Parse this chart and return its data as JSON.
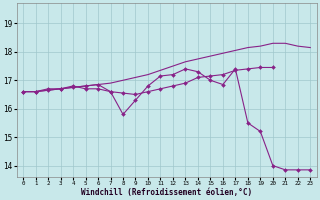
{
  "background_color": "#c8e8ea",
  "grid_color": "#a0c8cc",
  "line_color": "#882288",
  "xlabel": "Windchill (Refroidissement éolien,°C)",
  "x_ticks": [
    0,
    1,
    2,
    3,
    4,
    5,
    6,
    7,
    8,
    9,
    10,
    11,
    12,
    13,
    14,
    15,
    16,
    17,
    18,
    19,
    20,
    21,
    22,
    23
  ],
  "y_ticks": [
    14,
    15,
    16,
    17,
    18,
    19
  ],
  "xlim": [
    -0.5,
    23.5
  ],
  "ylim": [
    13.6,
    19.7
  ],
  "line1_x": [
    0,
    1,
    2,
    3,
    4,
    5,
    6,
    7,
    8,
    9,
    10,
    11,
    12,
    13,
    14,
    15,
    16,
    17,
    18,
    19,
    20
  ],
  "line1_y": [
    16.6,
    16.6,
    16.7,
    16.7,
    16.8,
    16.7,
    16.7,
    16.6,
    16.55,
    16.5,
    16.6,
    16.7,
    16.8,
    16.9,
    17.1,
    17.15,
    17.2,
    17.35,
    17.4,
    17.45,
    17.45
  ],
  "line2_x": [
    0,
    1,
    2,
    3,
    4,
    5,
    6,
    7,
    8,
    9,
    10,
    11,
    12,
    13,
    14,
    15,
    16,
    17,
    18,
    19,
    20,
    21,
    22,
    23
  ],
  "line2_y": [
    16.6,
    16.6,
    16.65,
    16.7,
    16.75,
    16.8,
    16.85,
    16.9,
    17.0,
    17.1,
    17.2,
    17.35,
    17.5,
    17.65,
    17.75,
    17.85,
    17.95,
    18.05,
    18.15,
    18.2,
    18.3,
    18.3,
    18.2,
    18.15
  ],
  "line3_x": [
    0,
    1,
    2,
    3,
    4,
    5,
    6,
    7,
    8,
    9,
    10,
    11,
    12,
    13,
    14,
    15,
    16,
    17,
    18,
    19,
    20,
    21,
    22,
    23
  ],
  "line3_y": [
    16.6,
    16.6,
    16.65,
    16.7,
    16.75,
    16.8,
    16.85,
    16.6,
    15.8,
    16.3,
    16.8,
    17.15,
    17.2,
    17.4,
    17.3,
    17.0,
    16.85,
    17.4,
    15.5,
    15.2,
    14.0,
    13.85,
    13.85,
    13.85
  ]
}
